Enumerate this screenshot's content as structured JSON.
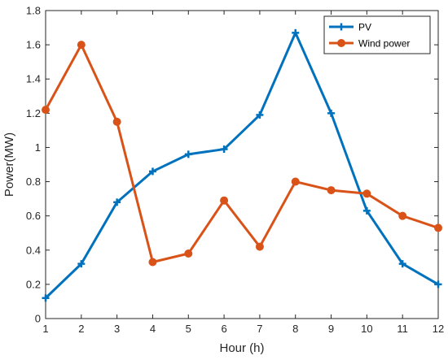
{
  "chart_data": {
    "type": "line",
    "title": "",
    "xlabel": "Hour (h)",
    "ylabel": "Power(MW)",
    "x": [
      1,
      2,
      3,
      4,
      5,
      6,
      7,
      8,
      9,
      10,
      11,
      12
    ],
    "xlim": [
      1,
      12
    ],
    "ylim": [
      0,
      1.8
    ],
    "xticks": [
      "1",
      "2",
      "3",
      "4",
      "5",
      "6",
      "7",
      "8",
      "9",
      "10",
      "11",
      "12"
    ],
    "yticks": [
      "0",
      "0.2",
      "0.4",
      "0.6",
      "0.8",
      "1",
      "1.2",
      "1.4",
      "1.6",
      "1.8"
    ],
    "grid": false,
    "legend_position": "top-right",
    "series": [
      {
        "name": "PV",
        "color": "#0072BD",
        "marker": "plus",
        "values": [
          0.12,
          0.32,
          0.68,
          0.86,
          0.96,
          0.99,
          1.19,
          1.67,
          1.2,
          0.63,
          0.32,
          0.2
        ]
      },
      {
        "name": "Wind power",
        "color": "#D95319",
        "marker": "circle",
        "values": [
          1.22,
          1.6,
          1.15,
          0.33,
          0.38,
          0.69,
          0.42,
          0.8,
          0.75,
          0.73,
          0.6,
          0.53
        ]
      }
    ]
  }
}
